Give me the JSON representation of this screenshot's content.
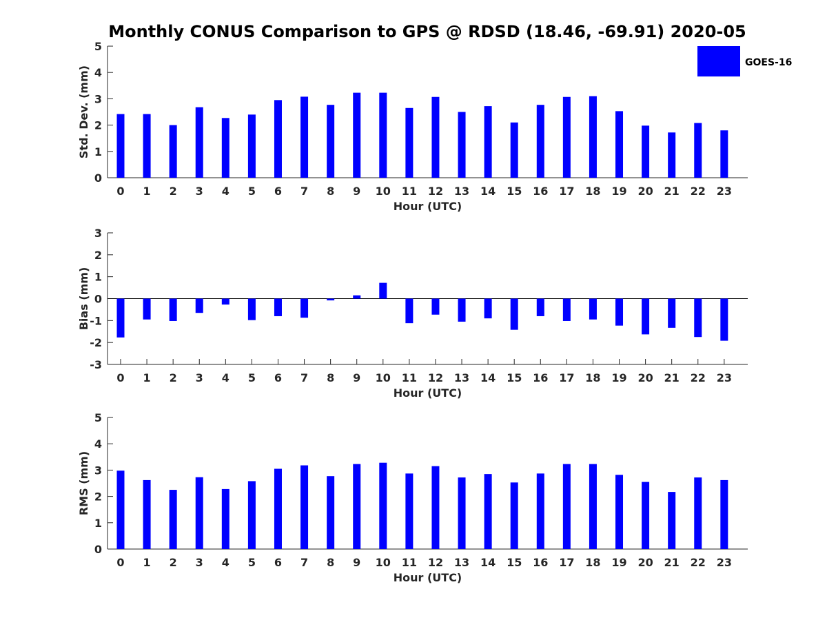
{
  "figure": {
    "title": "Monthly CONUS Comparison to GPS @ RDSD (18.46, -69.91) 2020-05",
    "legend": {
      "label": "GOES-16",
      "color": "#0000ff",
      "placement": "top-right"
    }
  },
  "chart_data": [
    {
      "type": "bar",
      "title": "",
      "xlabel": "Hour (UTC)",
      "ylabel": "Std. Dev. (mm)",
      "ylim": [
        0,
        5
      ],
      "yticks": [
        0,
        1,
        2,
        3,
        4,
        5
      ],
      "categories": [
        "0",
        "1",
        "2",
        "3",
        "4",
        "5",
        "6",
        "7",
        "8",
        "9",
        "10",
        "11",
        "12",
        "13",
        "14",
        "15",
        "16",
        "17",
        "18",
        "19",
        "20",
        "21",
        "22",
        "23"
      ],
      "series": [
        {
          "name": "GOES-16",
          "color": "#0000ff",
          "values": [
            2.42,
            2.42,
            2.0,
            2.68,
            2.27,
            2.4,
            2.95,
            3.08,
            2.77,
            3.23,
            3.23,
            2.65,
            3.07,
            2.5,
            2.72,
            2.1,
            2.77,
            3.07,
            3.1,
            2.53,
            1.98,
            1.72,
            2.08,
            1.8
          ]
        }
      ]
    },
    {
      "type": "bar",
      "title": "",
      "xlabel": "Hour (UTC)",
      "ylabel": "Bias (mm)",
      "ylim": [
        -3,
        3
      ],
      "yticks": [
        -3,
        -2,
        -1,
        0,
        1,
        2,
        3
      ],
      "categories": [
        "0",
        "1",
        "2",
        "3",
        "4",
        "5",
        "6",
        "7",
        "8",
        "9",
        "10",
        "11",
        "12",
        "13",
        "14",
        "15",
        "16",
        "17",
        "18",
        "19",
        "20",
        "21",
        "22",
        "23"
      ],
      "series": [
        {
          "name": "GOES-16",
          "color": "#0000ff",
          "values": [
            -1.77,
            -0.95,
            -1.02,
            -0.65,
            -0.27,
            -0.98,
            -0.8,
            -0.87,
            -0.08,
            0.15,
            0.72,
            -1.12,
            -0.73,
            -1.05,
            -0.9,
            -1.42,
            -0.8,
            -1.02,
            -0.95,
            -1.23,
            -1.63,
            -1.33,
            -1.75,
            -1.92
          ]
        }
      ]
    },
    {
      "type": "bar",
      "title": "",
      "xlabel": "Hour (UTC)",
      "ylabel": "RMS (mm)",
      "ylim": [
        0,
        5
      ],
      "yticks": [
        0,
        1,
        2,
        3,
        4,
        5
      ],
      "categories": [
        "0",
        "1",
        "2",
        "3",
        "4",
        "5",
        "6",
        "7",
        "8",
        "9",
        "10",
        "11",
        "12",
        "13",
        "14",
        "15",
        "16",
        "17",
        "18",
        "19",
        "20",
        "21",
        "22",
        "23"
      ],
      "series": [
        {
          "name": "GOES-16",
          "color": "#0000ff",
          "values": [
            2.98,
            2.62,
            2.25,
            2.73,
            2.28,
            2.58,
            3.05,
            3.18,
            2.77,
            3.23,
            3.28,
            2.87,
            3.15,
            2.72,
            2.85,
            2.53,
            2.87,
            3.23,
            3.23,
            2.82,
            2.55,
            2.17,
            2.72,
            2.62
          ]
        }
      ]
    }
  ]
}
